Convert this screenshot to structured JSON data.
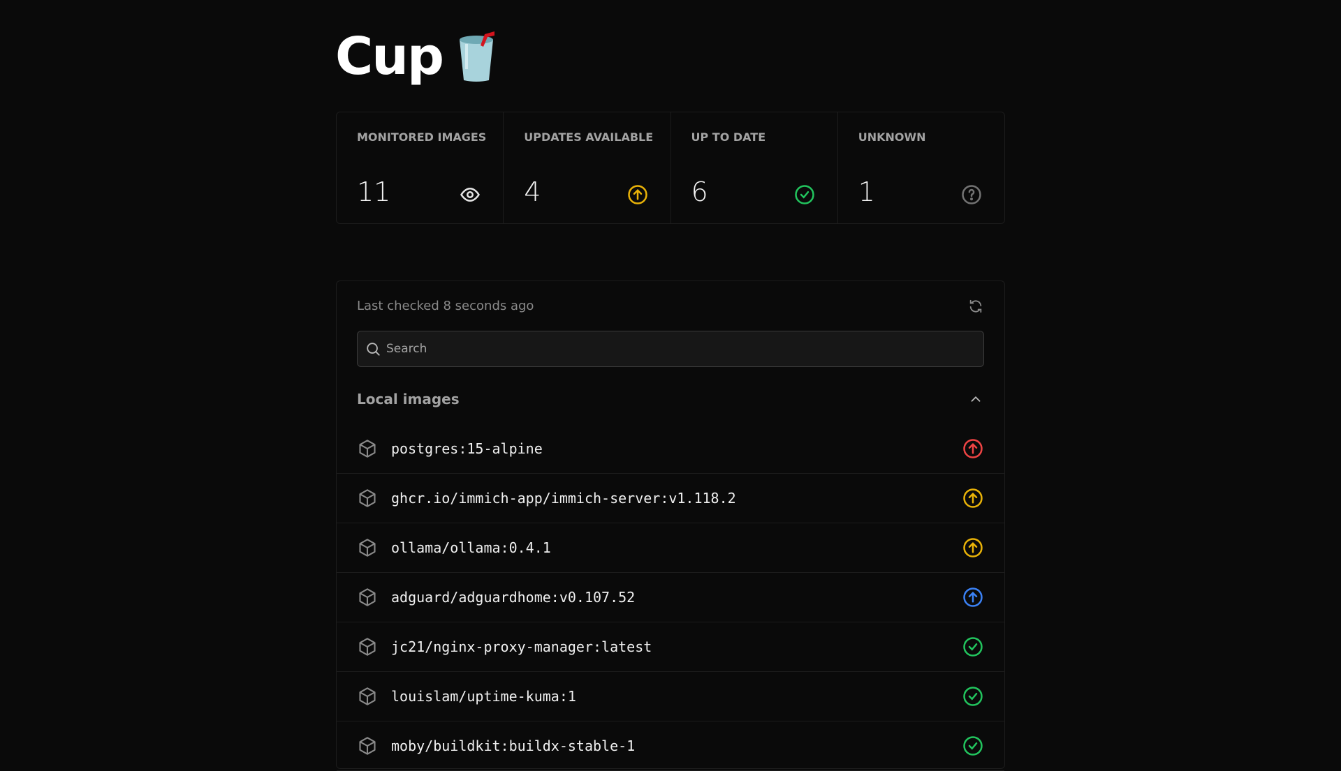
{
  "header": {
    "title": "Cup",
    "logo_icon": "cup-with-straw-emoji"
  },
  "stats": [
    {
      "label": "MONITORED IMAGES",
      "value": "11",
      "icon": "eye-icon",
      "color": "#e5e5e5"
    },
    {
      "label": "UPDATES AVAILABLE",
      "value": "4",
      "icon": "arrow-up-circle-icon",
      "color": "#eab308"
    },
    {
      "label": "UP TO DATE",
      "value": "6",
      "icon": "check-circle-icon",
      "color": "#22c55e"
    },
    {
      "label": "UNKNOWN",
      "value": "1",
      "icon": "question-circle-icon",
      "color": "#737373"
    }
  ],
  "panel": {
    "last_checked": "Last checked 8 seconds ago",
    "search_placeholder": "Search",
    "section_title": "Local images",
    "images": [
      {
        "name": "postgres:15-alpine",
        "status": "update",
        "color": "#ef4444"
      },
      {
        "name": "ghcr.io/immich-app/immich-server:v1.118.2",
        "status": "update",
        "color": "#eab308"
      },
      {
        "name": "ollama/ollama:0.4.1",
        "status": "update",
        "color": "#eab308"
      },
      {
        "name": "adguard/adguardhome:v0.107.52",
        "status": "update",
        "color": "#3b82f6"
      },
      {
        "name": "jc21/nginx-proxy-manager:latest",
        "status": "up-to-date",
        "color": "#22c55e"
      },
      {
        "name": "louislam/uptime-kuma:1",
        "status": "up-to-date",
        "color": "#22c55e"
      },
      {
        "name": "moby/buildkit:buildx-stable-1",
        "status": "up-to-date",
        "color": "#22c55e"
      }
    ]
  }
}
